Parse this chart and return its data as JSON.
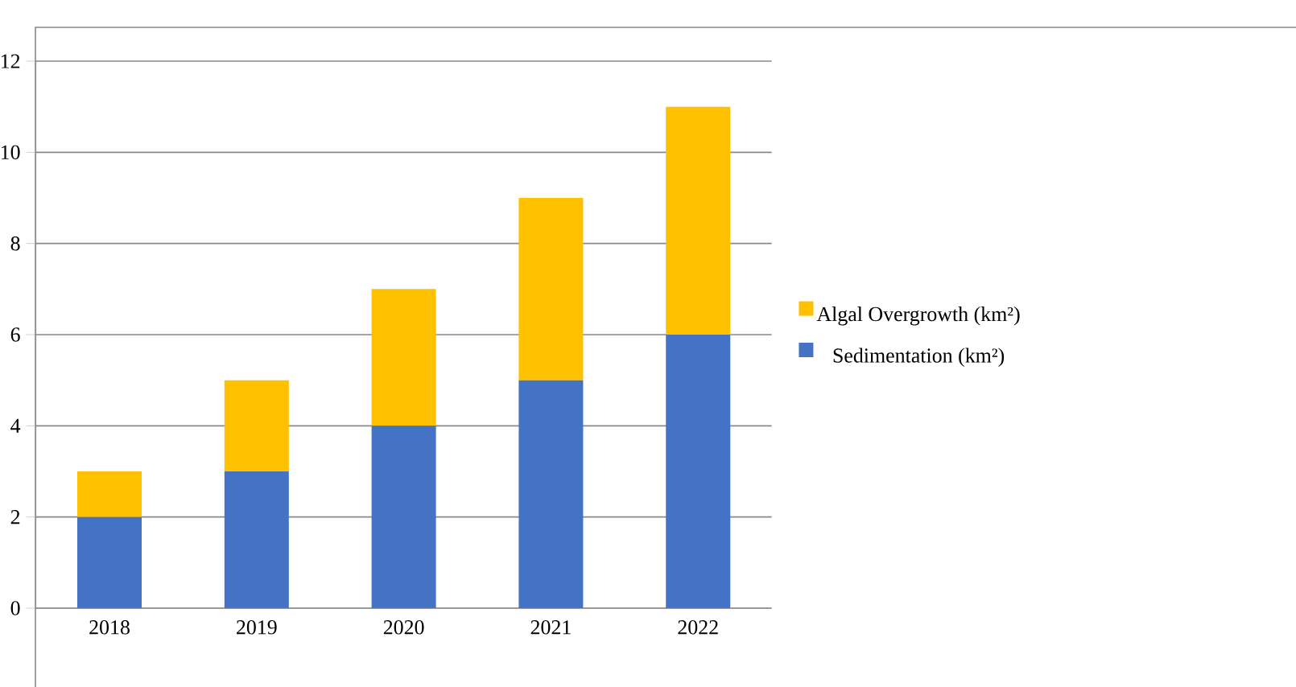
{
  "chart_data": {
    "type": "bar",
    "stacked": true,
    "categories": [
      "2018",
      "2019",
      "2020",
      "2021",
      "2022"
    ],
    "series": [
      {
        "name": "Sedimentation (km²)",
        "color": "#4472c4",
        "values": [
          2,
          3,
          4,
          5,
          6
        ]
      },
      {
        "name": "Algal Overgrowth (km²)",
        "color": "#ffc000",
        "values": [
          1,
          2,
          3,
          4,
          5
        ]
      }
    ],
    "ylim": [
      0,
      12
    ],
    "yticks": [
      0,
      2,
      4,
      6,
      8,
      10,
      12
    ],
    "grid": "y",
    "legend": "right"
  }
}
